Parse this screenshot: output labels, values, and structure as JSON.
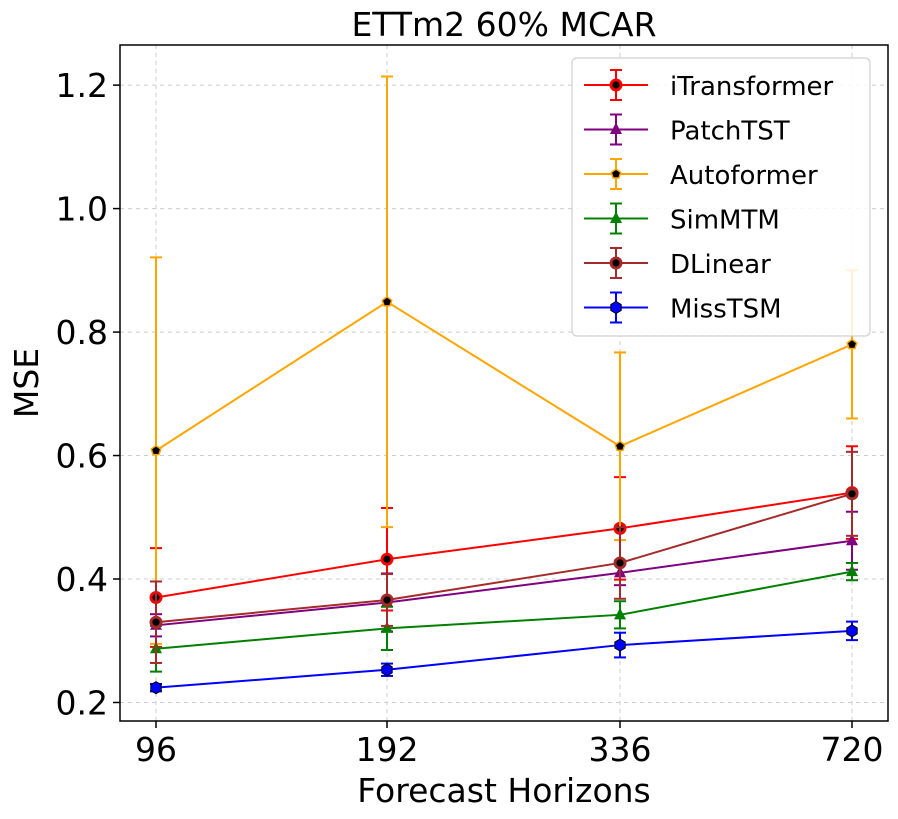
{
  "chart_data": {
    "type": "line",
    "title": "ETTm2 60% MCAR",
    "xlabel": "Forecast Horizons",
    "ylabel": "MSE",
    "categories": [
      "96",
      "192",
      "336",
      "720"
    ],
    "yticks": [
      "0.2",
      "0.4",
      "0.6",
      "0.8",
      "1.0",
      "1.2"
    ],
    "ylim": [
      0.17,
      1.265
    ],
    "grid": true,
    "legend_position": "top-right",
    "series": [
      {
        "name": "iTransformer",
        "color": "#ff0000",
        "marker": "circle",
        "values": [
          0.37,
          0.432,
          0.482,
          0.54
        ],
        "errors": [
          0.08,
          0.083,
          0.083,
          0.075
        ]
      },
      {
        "name": "PatchTST",
        "color": "#800080",
        "marker": "triangle",
        "values": [
          0.325,
          0.362,
          0.41,
          0.462
        ],
        "errors": [
          0.018,
          0.047,
          0.02,
          0.047
        ]
      },
      {
        "name": "Autoformer",
        "color": "#ffa500",
        "marker": "pentagon",
        "values": [
          0.608,
          0.849,
          0.615,
          0.78
        ],
        "errors": [
          0.313,
          0.365,
          0.152,
          0.12
        ]
      },
      {
        "name": "SimMTM",
        "color": "#008000",
        "marker": "triangle",
        "values": [
          0.287,
          0.32,
          0.342,
          0.412
        ],
        "errors": [
          0.037,
          0.035,
          0.022,
          0.014
        ]
      },
      {
        "name": "DLinear",
        "color": "#a52a2a",
        "marker": "circle",
        "values": [
          0.33,
          0.366,
          0.426,
          0.538
        ],
        "errors": [
          0.066,
          0.042,
          0.058,
          0.068
        ]
      },
      {
        "name": "MissTSM",
        "color": "#0000ff",
        "marker": "hexagon",
        "values": [
          0.224,
          0.253,
          0.293,
          0.316
        ],
        "errors": [
          0.006,
          0.01,
          0.02,
          0.015
        ]
      }
    ]
  }
}
